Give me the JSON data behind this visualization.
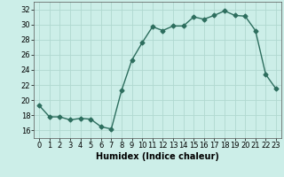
{
  "title": "",
  "xlabel": "Humidex (Indice chaleur)",
  "x_values": [
    0,
    1,
    2,
    3,
    4,
    5,
    6,
    7,
    8,
    9,
    10,
    11,
    12,
    13,
    14,
    15,
    16,
    17,
    18,
    19,
    20,
    21,
    22,
    23
  ],
  "y_values": [
    19.3,
    17.8,
    17.8,
    17.4,
    17.6,
    17.5,
    16.5,
    16.2,
    21.3,
    25.3,
    27.6,
    29.7,
    29.2,
    29.8,
    29.8,
    31.0,
    30.7,
    31.2,
    31.8,
    31.2,
    31.1,
    29.2,
    23.4,
    21.5
  ],
  "line_color": "#2d6e5e",
  "marker": "D",
  "marker_size": 2.5,
  "bg_color": "#cceee8",
  "grid_color": "#b0d8d0",
  "ylim": [
    15,
    33
  ],
  "yticks": [
    16,
    18,
    20,
    22,
    24,
    26,
    28,
    30,
    32
  ],
  "xticks": [
    0,
    1,
    2,
    3,
    4,
    5,
    6,
    7,
    8,
    9,
    10,
    11,
    12,
    13,
    14,
    15,
    16,
    17,
    18,
    19,
    20,
    21,
    22,
    23
  ],
  "xlabel_fontsize": 7,
  "tick_fontsize": 6,
  "line_width": 1.0
}
